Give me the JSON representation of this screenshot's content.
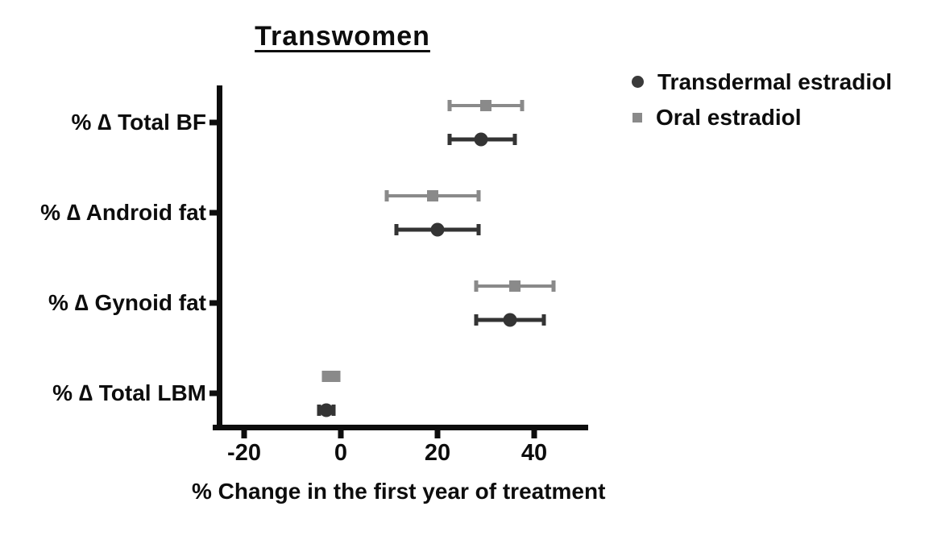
{
  "title": "Transwomen",
  "legend": {
    "items": [
      {
        "label": "Transdermal estradiol",
        "marker": "circle-icon",
        "color": "#3a3a3a"
      },
      {
        "label": "Oral estradiol",
        "marker": "square-icon",
        "color": "#8a8a8a"
      }
    ]
  },
  "chart_data": {
    "type": "scatter",
    "orientation": "horizontal",
    "title": "Transwomen",
    "xlabel": "% Change in the first year of treatment",
    "ylabel": "",
    "categories": [
      "% ∆ Total BF",
      "% ∆ Android fat",
      "% ∆ Gynoid fat",
      "% ∆ Total LBM"
    ],
    "x_ticks": [
      "-20",
      "0",
      "20",
      "40"
    ],
    "xlim": [
      -26,
      51
    ],
    "grid": false,
    "legend_position": "top-right",
    "error_bars": true,
    "series": [
      {
        "name": "Oral estradiol",
        "marker": "square",
        "color": "#8a8a8a",
        "pair_position": "top",
        "values": [
          30,
          19,
          36,
          -2
        ],
        "ci_low": [
          22.5,
          9.5,
          28,
          -3.5
        ],
        "ci_high": [
          37.5,
          28.5,
          44,
          -0.5
        ]
      },
      {
        "name": "Transdermal estradiol",
        "marker": "circle",
        "color": "#343434",
        "pair_position": "bottom",
        "values": [
          29,
          20,
          35,
          -3
        ],
        "ci_low": [
          22.5,
          11.5,
          28,
          -4.5
        ],
        "ci_high": [
          36,
          28.5,
          42,
          -1.5
        ]
      }
    ],
    "axis_color": "#0d0d0d"
  }
}
